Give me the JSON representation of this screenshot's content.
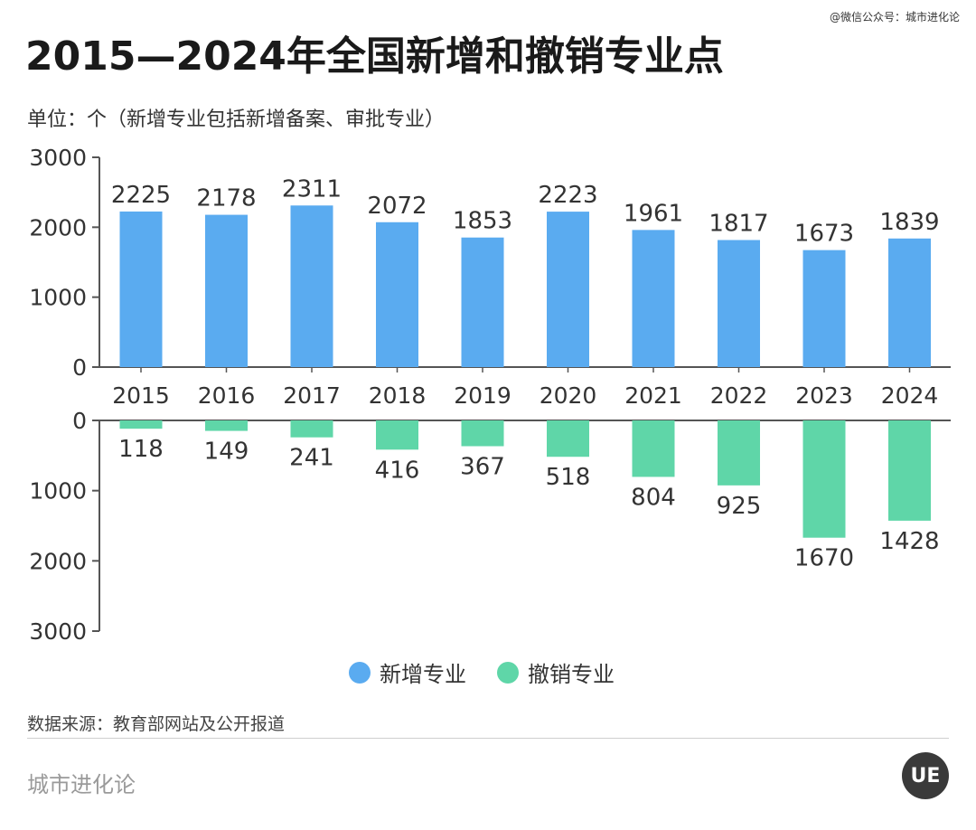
{
  "header": {
    "title": "2015—2024年全国新增和撤销专业点",
    "unit_note": "单位：个（新增专业包括新增备案、审批专业）",
    "watermark": "@微信公众号：城市进化论"
  },
  "legend": {
    "items": [
      {
        "label": "新增专业",
        "color": "#5aabf0"
      },
      {
        "label": "撤销专业",
        "color": "#5fd6a8"
      }
    ]
  },
  "footer": {
    "source": "数据来源：教育部网站及公开报道",
    "brand": "城市进化论",
    "logo_text": "UE"
  },
  "chart_data": [
    {
      "type": "bar",
      "categories": [
        "2015",
        "2016",
        "2017",
        "2018",
        "2019",
        "2020",
        "2021",
        "2022",
        "2023",
        "2024"
      ],
      "series": [
        {
          "name": "新增专业",
          "values": [
            2225,
            2178,
            2311,
            2072,
            1853,
            2223,
            1961,
            1817,
            1673,
            1839
          ]
        }
      ],
      "yticks": [
        "3000",
        "2000",
        "1000",
        "0"
      ],
      "ylim": [
        0,
        3000
      ],
      "color": "#5aabf0"
    },
    {
      "type": "bar",
      "categories": [
        "2015",
        "2016",
        "2017",
        "2018",
        "2019",
        "2020",
        "2021",
        "2022",
        "2023",
        "2024"
      ],
      "series": [
        {
          "name": "撤销专业",
          "values": [
            118,
            149,
            241,
            416,
            367,
            518,
            804,
            925,
            1670,
            1428
          ]
        }
      ],
      "yticks": [
        "0",
        "1000",
        "2000",
        "3000"
      ],
      "ylim": [
        0,
        3000
      ],
      "inverted": true,
      "color": "#5fd6a8"
    }
  ]
}
